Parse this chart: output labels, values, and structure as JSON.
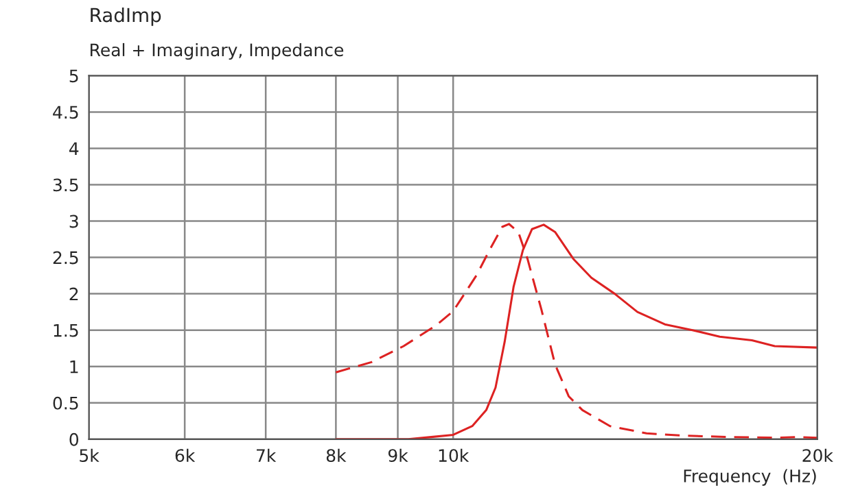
{
  "chart_data": {
    "type": "line",
    "title": "RadImp",
    "subtitle": "Real + Imaginary, Impedance",
    "xlabel": "Frequency  (Hz)",
    "log": "x",
    "grid": true,
    "marker": "none",
    "xlim": [
      5000,
      20000
    ],
    "ylim": [
      0,
      5
    ],
    "xticks": [
      {
        "value": 5000,
        "label": "5k"
      },
      {
        "value": 6000,
        "label": "6k"
      },
      {
        "value": 7000,
        "label": "7k"
      },
      {
        "value": 8000,
        "label": "8k"
      },
      {
        "value": 9000,
        "label": "9k"
      },
      {
        "value": 10000,
        "label": "10k"
      },
      {
        "value": 20000,
        "label": "20k"
      }
    ],
    "yticks": [
      0,
      0.5,
      1,
      1.5,
      2,
      2.5,
      3,
      3.5,
      4,
      4.5,
      5
    ],
    "series": [
      {
        "color": "#dd2222",
        "line_style": "solid",
        "x": [
          8000,
          9180,
          9590,
          10000,
          10370,
          10650,
          10840,
          11030,
          11220,
          11420,
          11620,
          11880,
          12140,
          12570,
          13010,
          13600,
          14200,
          14960,
          15770,
          16610,
          17660,
          18440,
          20000
        ],
        "values": [
          0,
          0,
          0.03,
          0.06,
          0.18,
          0.4,
          0.71,
          1.34,
          2.1,
          2.6,
          2.89,
          2.95,
          2.85,
          2.48,
          2.22,
          2.0,
          1.75,
          1.58,
          1.5,
          1.41,
          1.36,
          1.28,
          1.26
        ]
      },
      {
        "color": "#dd2222",
        "line_style": "dashed",
        "x": [
          8000,
          8560,
          9100,
          9670,
          10000,
          10460,
          10740,
          10980,
          11120,
          11320,
          11520,
          11830,
          12140,
          12460,
          12790,
          13480,
          14450,
          15490,
          16900,
          18440,
          19270,
          20000
        ],
        "values": [
          0.92,
          1.06,
          1.28,
          1.56,
          1.76,
          2.26,
          2.63,
          2.92,
          2.96,
          2.85,
          2.48,
          1.78,
          1.03,
          0.59,
          0.4,
          0.18,
          0.08,
          0.05,
          0.03,
          0.02,
          0.03,
          0.02
        ]
      }
    ]
  }
}
